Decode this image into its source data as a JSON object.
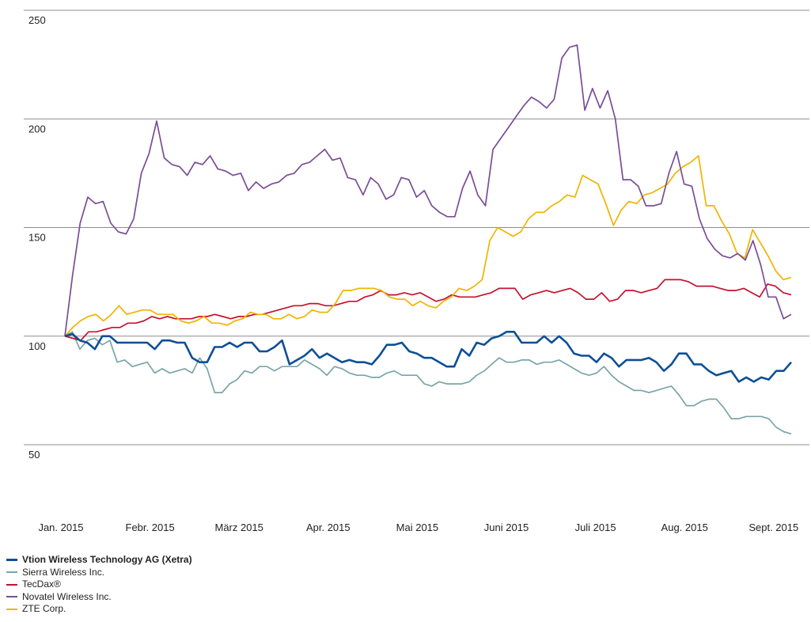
{
  "chart_data": {
    "type": "line",
    "title": "",
    "xlabel": "",
    "ylabel": "",
    "ylim": [
      50,
      250
    ],
    "yticks": [
      50,
      100,
      150,
      200,
      250
    ],
    "xticks": [
      "Jan. 2015",
      "Febr. 2015",
      "März 2015",
      "Apr. 2015",
      "Mai 2015",
      "Juni 2015",
      "Juli 2015",
      "Aug. 2015",
      "Sept. 2015"
    ],
    "grid": "horizontal",
    "legend_position": "bottom-left",
    "series": [
      {
        "name": "Vtion Wireless Technology AG (Xetra)",
        "color": "#0d4f96",
        "bold": true,
        "values": [
          100,
          101,
          98,
          97,
          94,
          100,
          100,
          97,
          97,
          97,
          97,
          97,
          94,
          98,
          98,
          97,
          97,
          90,
          88,
          88,
          95,
          95,
          97,
          95,
          97,
          97,
          93,
          93,
          95,
          98,
          87,
          89,
          91,
          94,
          90,
          92,
          90,
          88,
          89,
          88,
          88,
          87,
          91,
          96,
          96,
          97,
          93,
          92,
          90,
          90,
          88,
          86,
          86,
          94,
          91,
          97,
          96,
          99,
          100,
          102,
          102,
          97,
          97,
          97,
          100,
          97,
          100,
          97,
          92,
          91,
          91,
          88,
          92,
          90,
          86,
          89,
          89,
          89,
          90,
          88,
          84,
          87,
          92,
          92,
          87,
          87,
          84,
          82,
          83,
          84,
          79,
          81,
          79,
          81,
          80,
          84,
          84,
          88
        ]
      },
      {
        "name": "Sierra Wireless Inc.",
        "color": "#7aa5a6",
        "bold": false,
        "values": [
          100,
          102,
          94,
          98,
          99,
          96,
          98,
          88,
          89,
          86,
          87,
          88,
          83,
          85,
          83,
          84,
          85,
          83,
          90,
          85,
          74,
          74,
          78,
          80,
          84,
          83,
          86,
          86,
          84,
          86,
          86,
          86,
          89,
          87,
          85,
          82,
          86,
          85,
          83,
          82,
          82,
          81,
          81,
          83,
          84,
          82,
          82,
          82,
          78,
          77,
          79,
          78,
          78,
          78,
          79,
          82,
          84,
          87,
          90,
          88,
          88,
          89,
          89,
          87,
          88,
          88,
          89,
          87,
          85,
          83,
          82,
          83,
          86,
          82,
          79,
          77,
          75,
          75,
          74,
          75,
          76,
          77,
          73,
          68,
          68,
          70,
          71,
          71,
          67,
          62,
          62,
          63,
          63,
          63,
          62,
          58,
          56,
          55
        ]
      },
      {
        "name": "TecDax®",
        "color": "#c4122f",
        "bold": false,
        "values": [
          100,
          99,
          98,
          102,
          102,
          103,
          104,
          104,
          106,
          106,
          107,
          109,
          108,
          109,
          108,
          108,
          108,
          109,
          109,
          110,
          109,
          108,
          109,
          109,
          110,
          110,
          111,
          112,
          113,
          114,
          114,
          115,
          115,
          114,
          114,
          115,
          116,
          116,
          118,
          119,
          121,
          119,
          119,
          120,
          119,
          120,
          118,
          116,
          117,
          119,
          118,
          118,
          118,
          119,
          120,
          122,
          122,
          122,
          117,
          119,
          120,
          121,
          120,
          121,
          122,
          120,
          117,
          117,
          120,
          116,
          117,
          121,
          121,
          120,
          121,
          122,
          126,
          126,
          126,
          125,
          123,
          123,
          123,
          122,
          121,
          121,
          122,
          120,
          118,
          124,
          123,
          120,
          119
        ]
      },
      {
        "name": "Novatel Wireless Inc.",
        "color": "#7a4d96",
        "bold": false,
        "values": [
          100,
          128,
          152,
          164,
          161,
          162,
          152,
          148,
          147,
          154,
          175,
          184,
          199,
          182,
          179,
          178,
          174,
          180,
          179,
          183,
          177,
          176,
          174,
          175,
          167,
          171,
          168,
          170,
          171,
          174,
          175,
          179,
          180,
          183,
          186,
          181,
          182,
          173,
          172,
          165,
          173,
          170,
          163,
          165,
          173,
          172,
          164,
          167,
          160,
          157,
          155,
          155,
          168,
          176,
          165,
          160,
          186,
          191,
          196,
          201,
          206,
          210,
          208,
          205,
          209,
          228,
          233,
          234,
          204,
          214,
          205,
          213,
          200,
          172,
          172,
          169,
          160,
          160,
          161,
          175,
          185,
          170,
          169,
          154,
          145,
          140,
          137,
          136,
          138,
          135,
          144,
          133,
          118,
          118,
          108,
          110
        ]
      },
      {
        "name": "ZTE Corp.",
        "color": "#f0b400",
        "bold": false,
        "values": [
          100,
          104,
          107,
          109,
          110,
          107,
          110,
          114,
          110,
          111,
          112,
          112,
          110,
          110,
          110,
          107,
          106,
          107,
          109,
          106,
          106,
          105,
          107,
          108,
          111,
          110,
          110,
          108,
          108,
          110,
          108,
          109,
          112,
          111,
          111,
          115,
          121,
          121,
          122,
          122,
          122,
          121,
          118,
          117,
          117,
          114,
          116,
          114,
          113,
          116,
          118,
          122,
          121,
          123,
          126,
          144,
          150,
          148,
          146,
          148,
          154,
          157,
          157,
          160,
          162,
          165,
          164,
          174,
          172,
          170,
          161,
          151,
          158,
          162,
          161,
          165,
          166,
          168,
          170,
          175,
          178,
          180,
          183,
          160,
          160,
          153,
          147,
          138,
          136,
          149,
          143,
          137,
          130,
          126,
          127
        ]
      }
    ]
  }
}
